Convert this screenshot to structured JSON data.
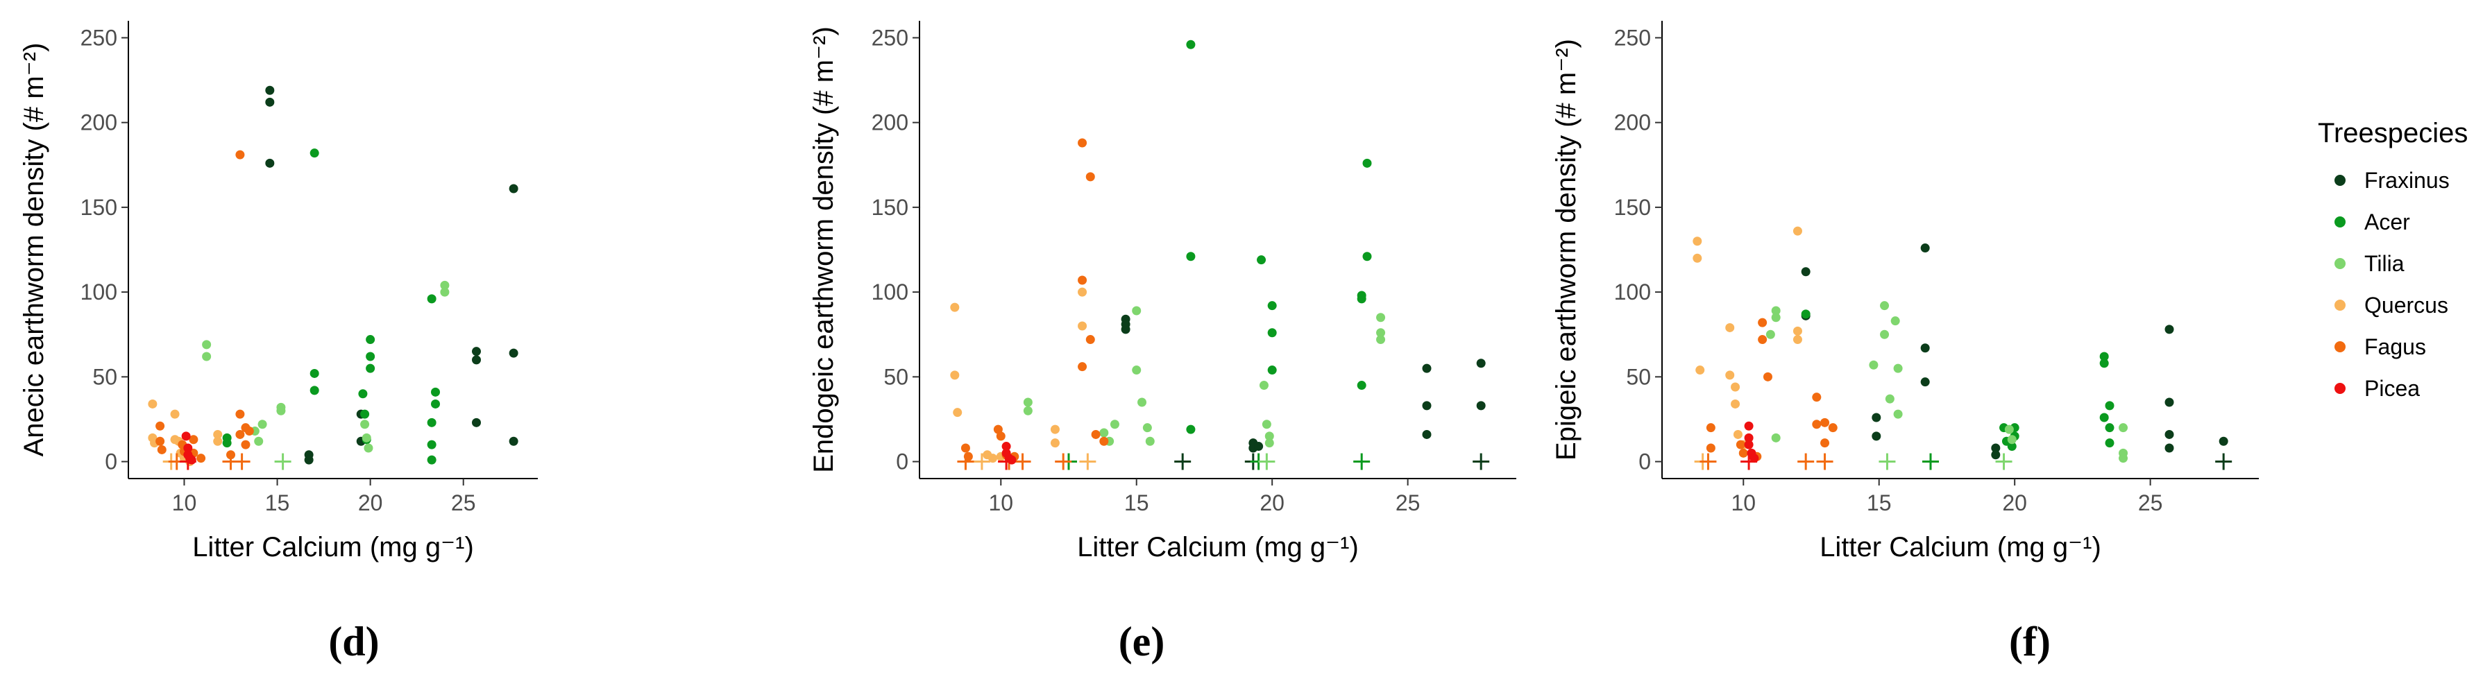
{
  "legend": {
    "title": "Treespecies",
    "entries": [
      {
        "name": "Fraxinus",
        "color": "#0b3d1a"
      },
      {
        "name": "Acer",
        "color": "#0a9a1f"
      },
      {
        "name": "Tilia",
        "color": "#7fd66e"
      },
      {
        "name": "Quercus",
        "color": "#f9b45a"
      },
      {
        "name": "Fagus",
        "color": "#f26b10"
      },
      {
        "name": "Picea",
        "color": "#ee1010"
      }
    ]
  },
  "chart_data": [
    {
      "type": "scatter",
      "panel_label": "(d)",
      "xlabel": "Litter Calcium (mg g⁻¹)",
      "ylabel": "Anecic earthworm density (# m⁻²)",
      "xlim": [
        7,
        29
      ],
      "ylim": [
        -10,
        260
      ],
      "xticks": [
        10,
        15,
        20,
        25
      ],
      "yticks": [
        0,
        50,
        100,
        150,
        200,
        250
      ],
      "grid": false,
      "series": [
        {
          "name": "Fraxinus",
          "points": [
            [
              14.6,
              219
            ],
            [
              14.6,
              212
            ],
            [
              14.6,
              176
            ],
            [
              16.7,
              4
            ],
            [
              16.7,
              1
            ],
            [
              19.5,
              28
            ],
            [
              19.5,
              12
            ],
            [
              25.7,
              65
            ],
            [
              25.7,
              60
            ],
            [
              25.7,
              23
            ],
            [
              27.7,
              161
            ],
            [
              27.7,
              64
            ],
            [
              27.7,
              12
            ]
          ],
          "zero_x": []
        },
        {
          "name": "Acer",
          "points": [
            [
              12.3,
              14
            ],
            [
              12.3,
              11
            ],
            [
              17.0,
              182
            ],
            [
              17.0,
              52
            ],
            [
              17.0,
              42
            ],
            [
              19.6,
              40
            ],
            [
              19.7,
              28
            ],
            [
              19.8,
              13
            ],
            [
              20.0,
              72
            ],
            [
              20.0,
              62
            ],
            [
              20.0,
              55
            ],
            [
              23.3,
              96
            ],
            [
              23.3,
              23
            ],
            [
              23.3,
              10
            ],
            [
              23.3,
              1
            ],
            [
              23.5,
              41
            ],
            [
              23.5,
              34
            ]
          ],
          "zero_x": []
        },
        {
          "name": "Tilia",
          "points": [
            [
              11.2,
              69
            ],
            [
              11.2,
              62
            ],
            [
              13.8,
              18
            ],
            [
              14.0,
              12
            ],
            [
              14.2,
              22
            ],
            [
              15.2,
              32
            ],
            [
              15.2,
              30
            ],
            [
              19.7,
              22
            ],
            [
              19.8,
              14
            ],
            [
              19.9,
              8
            ],
            [
              24.0,
              104
            ],
            [
              24.0,
              100
            ]
          ],
          "zero_x": [
            15.3
          ]
        },
        {
          "name": "Quercus",
          "points": [
            [
              8.3,
              34
            ],
            [
              8.3,
              14
            ],
            [
              8.4,
              11
            ],
            [
              9.5,
              28
            ],
            [
              9.5,
              13
            ],
            [
              9.7,
              12
            ],
            [
              9.8,
              5
            ],
            [
              10.0,
              2
            ],
            [
              10.3,
              0
            ],
            [
              11.8,
              16
            ],
            [
              11.8,
              12
            ]
          ],
          "zero_x": [
            9.3
          ]
        },
        {
          "name": "Fagus",
          "points": [
            [
              8.7,
              21
            ],
            [
              8.7,
              12
            ],
            [
              8.8,
              7
            ],
            [
              9.9,
              10
            ],
            [
              10.0,
              6
            ],
            [
              10.5,
              5
            ],
            [
              10.5,
              13
            ],
            [
              10.9,
              2
            ],
            [
              12.5,
              4
            ],
            [
              13.0,
              181
            ],
            [
              13.0,
              28
            ],
            [
              13.0,
              16
            ],
            [
              13.3,
              20
            ],
            [
              13.3,
              10
            ],
            [
              13.5,
              18
            ]
          ],
          "zero_x": [
            9.6,
            12.5,
            13.1
          ]
        },
        {
          "name": "Picea",
          "points": [
            [
              10.1,
              15
            ],
            [
              10.2,
              8
            ],
            [
              10.2,
              4
            ],
            [
              10.3,
              2
            ],
            [
              10.4,
              1
            ]
          ],
          "zero_x": [
            10.2
          ]
        }
      ]
    },
    {
      "type": "scatter",
      "panel_label": "(e)",
      "xlabel": "Litter Calcium (mg g⁻¹)",
      "ylabel": "Endogeic earthworm density (# m⁻²)",
      "xlim": [
        7,
        29
      ],
      "ylim": [
        -10,
        260
      ],
      "xticks": [
        10,
        15,
        20,
        25
      ],
      "yticks": [
        0,
        50,
        100,
        150,
        200,
        250
      ],
      "grid": false,
      "series": [
        {
          "name": "Fraxinus",
          "points": [
            [
              14.6,
              84
            ],
            [
              14.6,
              81
            ],
            [
              14.6,
              78
            ],
            [
              19.3,
              11
            ],
            [
              19.3,
              8
            ],
            [
              19.5,
              9
            ],
            [
              25.7,
              55
            ],
            [
              25.7,
              33
            ],
            [
              25.7,
              16
            ],
            [
              27.7,
              58
            ],
            [
              27.7,
              33
            ]
          ],
          "zero_x": [
            16.7,
            19.3,
            27.7
          ]
        },
        {
          "name": "Acer",
          "points": [
            [
              17.0,
              246
            ],
            [
              17.0,
              121
            ],
            [
              17.0,
              19
            ],
            [
              19.6,
              119
            ],
            [
              20.0,
              92
            ],
            [
              20.0,
              76
            ],
            [
              20.0,
              54
            ],
            [
              23.3,
              98
            ],
            [
              23.3,
              96
            ],
            [
              23.3,
              45
            ],
            [
              23.5,
              176
            ],
            [
              23.5,
              121
            ]
          ],
          "zero_x": [
            12.5,
            19.5,
            23.3
          ]
        },
        {
          "name": "Tilia",
          "points": [
            [
              11.0,
              35
            ],
            [
              11.0,
              30
            ],
            [
              13.8,
              17
            ],
            [
              14.0,
              12
            ],
            [
              14.2,
              22
            ],
            [
              15.0,
              89
            ],
            [
              15.0,
              54
            ],
            [
              15.2,
              35
            ],
            [
              15.4,
              20
            ],
            [
              15.5,
              12
            ],
            [
              19.7,
              45
            ],
            [
              19.8,
              22
            ],
            [
              19.9,
              15
            ],
            [
              19.9,
              11
            ],
            [
              24.0,
              85
            ],
            [
              24.0,
              76
            ],
            [
              24.0,
              72
            ]
          ],
          "zero_x": [
            19.8
          ]
        },
        {
          "name": "Quercus",
          "points": [
            [
              8.3,
              91
            ],
            [
              8.3,
              51
            ],
            [
              8.4,
              29
            ],
            [
              9.5,
              4
            ],
            [
              9.7,
              2
            ],
            [
              10.0,
              3
            ],
            [
              12.0,
              19
            ],
            [
              12.0,
              11
            ],
            [
              13.0,
              100
            ],
            [
              13.0,
              80
            ]
          ],
          "zero_x": [
            8.7,
            9.3,
            13.2
          ]
        },
        {
          "name": "Fagus",
          "points": [
            [
              8.7,
              8
            ],
            [
              8.8,
              3
            ],
            [
              9.9,
              19
            ],
            [
              10.0,
              15
            ],
            [
              10.2,
              4
            ],
            [
              10.5,
              3
            ],
            [
              13.0,
              188
            ],
            [
              13.0,
              107
            ],
            [
              13.0,
              56
            ],
            [
              13.3,
              168
            ],
            [
              13.3,
              72
            ],
            [
              13.5,
              16
            ],
            [
              13.8,
              12
            ]
          ],
          "zero_x": [
            8.7,
            10.3,
            10.8,
            12.3
          ]
        },
        {
          "name": "Picea",
          "points": [
            [
              10.2,
              9
            ],
            [
              10.2,
              5
            ],
            [
              10.3,
              2
            ],
            [
              10.4,
              1
            ]
          ],
          "zero_x": [
            10.2
          ]
        }
      ]
    },
    {
      "type": "scatter",
      "panel_label": "(f)",
      "xlabel": "Litter Calcium (mg g⁻¹)",
      "ylabel": "Epigeic earthworm density (# m⁻²)",
      "xlim": [
        7,
        29
      ],
      "ylim": [
        -10,
        260
      ],
      "xticks": [
        10,
        15,
        20,
        25
      ],
      "yticks": [
        0,
        50,
        100,
        150,
        200,
        250
      ],
      "grid": false,
      "series": [
        {
          "name": "Fraxinus",
          "points": [
            [
              12.3,
              112
            ],
            [
              12.3,
              86
            ],
            [
              14.9,
              26
            ],
            [
              14.9,
              15
            ],
            [
              16.7,
              126
            ],
            [
              16.7,
              67
            ],
            [
              16.7,
              47
            ],
            [
              19.3,
              8
            ],
            [
              19.3,
              4
            ],
            [
              25.7,
              78
            ],
            [
              25.7,
              35
            ],
            [
              25.7,
              16
            ],
            [
              25.7,
              8
            ],
            [
              27.7,
              12
            ]
          ],
          "zero_x": [
            27.7
          ]
        },
        {
          "name": "Acer",
          "points": [
            [
              12.3,
              87
            ],
            [
              19.6,
              20
            ],
            [
              19.7,
              12
            ],
            [
              19.9,
              9
            ],
            [
              20.0,
              20
            ],
            [
              20.0,
              15
            ],
            [
              23.3,
              62
            ],
            [
              23.3,
              58
            ],
            [
              23.3,
              26
            ],
            [
              23.5,
              33
            ],
            [
              23.5,
              20
            ],
            [
              23.5,
              11
            ]
          ],
          "zero_x": [
            16.9
          ]
        },
        {
          "name": "Tilia",
          "points": [
            [
              11.0,
              75
            ],
            [
              11.2,
              89
            ],
            [
              11.2,
              85
            ],
            [
              11.2,
              14
            ],
            [
              14.8,
              57
            ],
            [
              15.2,
              92
            ],
            [
              15.2,
              75
            ],
            [
              15.4,
              37
            ],
            [
              15.6,
              83
            ],
            [
              15.7,
              55
            ],
            [
              15.7,
              28
            ],
            [
              19.8,
              19
            ],
            [
              19.9,
              13
            ],
            [
              24.0,
              20
            ],
            [
              24.0,
              5
            ],
            [
              24.0,
              2
            ]
          ],
          "zero_x": [
            15.3,
            19.6
          ]
        },
        {
          "name": "Quercus",
          "points": [
            [
              8.3,
              130
            ],
            [
              8.3,
              120
            ],
            [
              8.4,
              54
            ],
            [
              9.5,
              79
            ],
            [
              9.5,
              51
            ],
            [
              9.7,
              44
            ],
            [
              9.7,
              34
            ],
            [
              9.8,
              16
            ],
            [
              10.0,
              10
            ],
            [
              12.0,
              136
            ],
            [
              12.0,
              77
            ],
            [
              12.0,
              72
            ]
          ],
          "zero_x": [
            8.5
          ]
        },
        {
          "name": "Fagus",
          "points": [
            [
              8.8,
              20
            ],
            [
              8.8,
              8
            ],
            [
              9.9,
              10
            ],
            [
              10.0,
              5
            ],
            [
              10.5,
              3
            ],
            [
              10.7,
              82
            ],
            [
              10.7,
              72
            ],
            [
              10.9,
              50
            ],
            [
              12.7,
              38
            ],
            [
              12.7,
              22
            ],
            [
              13.0,
              23
            ],
            [
              13.0,
              11
            ],
            [
              13.3,
              20
            ]
          ],
          "zero_x": [
            8.7,
            12.3,
            13.0
          ]
        },
        {
          "name": "Picea",
          "points": [
            [
              10.2,
              21
            ],
            [
              10.2,
              14
            ],
            [
              10.2,
              10
            ],
            [
              10.3,
              5
            ],
            [
              10.4,
              2
            ]
          ],
          "zero_x": [
            10.2
          ]
        }
      ]
    }
  ]
}
